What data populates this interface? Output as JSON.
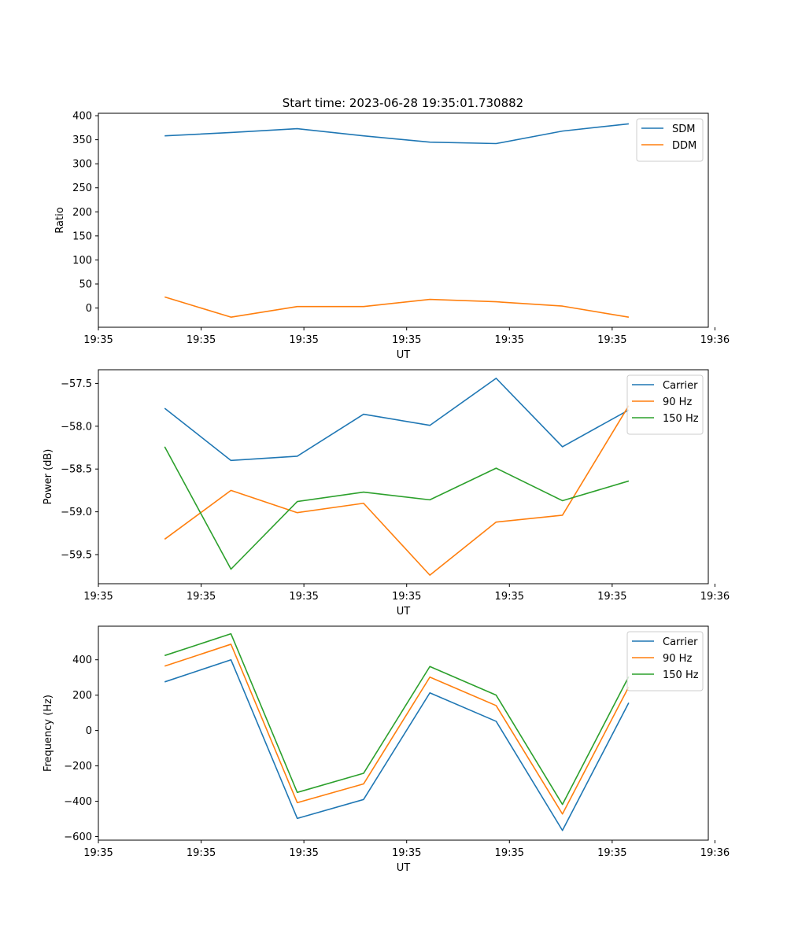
{
  "figure": {
    "title": "Start time: 2023-06-28 19:35:01.730882"
  },
  "chart_data": [
    {
      "type": "line",
      "title": "Start time: 2023-06-28 19:35:01.730882",
      "xlabel": "UT",
      "ylabel": "Ratio",
      "x_tick_labels": [
        "19:35",
        "19:35",
        "19:35",
        "19:35",
        "19:35",
        "19:35",
        "19:36"
      ],
      "y_ticks": [
        0,
        50,
        100,
        150,
        200,
        250,
        300,
        350,
        400
      ],
      "ylim": [
        -40,
        405
      ],
      "x_index": [
        1,
        2,
        3,
        4,
        5,
        6,
        7,
        8
      ],
      "xlim": [
        0,
        9.2
      ],
      "x_tick_positions": [
        0,
        1.55,
        3.1,
        4.65,
        6.2,
        7.75,
        9.3
      ],
      "legend": "top-right",
      "grid": false,
      "series": [
        {
          "name": "SDM",
          "color": "#1f77b4",
          "values": [
            358,
            365,
            373,
            358,
            345,
            342,
            368,
            383
          ]
        },
        {
          "name": "DDM",
          "color": "#ff7f0e",
          "values": [
            23,
            -19,
            3,
            3,
            18,
            13,
            4,
            -19
          ]
        }
      ]
    },
    {
      "type": "line",
      "title": "",
      "xlabel": "UT",
      "ylabel": "Power (dB)",
      "x_tick_labels": [
        "19:35",
        "19:35",
        "19:35",
        "19:35",
        "19:35",
        "19:35",
        "19:36"
      ],
      "y_ticks": [
        -59.5,
        -59.0,
        -58.5,
        -58.0,
        -57.5
      ],
      "y_tick_labels": [
        "−59.5",
        "−59.0",
        "−58.5",
        "−58.0",
        "−57.5"
      ],
      "ylim": [
        -59.84,
        -57.34
      ],
      "x_index": [
        1,
        2,
        3,
        4,
        5,
        6,
        7,
        8
      ],
      "xlim": [
        0,
        9.2
      ],
      "x_tick_positions": [
        0,
        1.55,
        3.1,
        4.65,
        6.2,
        7.75,
        9.3
      ],
      "legend": "top-right",
      "grid": false,
      "series": [
        {
          "name": "Carrier",
          "color": "#1f77b4",
          "values": [
            -57.79,
            -58.4,
            -58.35,
            -57.86,
            -57.99,
            -57.44,
            -58.24,
            -57.81
          ]
        },
        {
          "name": "90 Hz",
          "color": "#ff7f0e",
          "values": [
            -59.32,
            -58.75,
            -59.01,
            -58.9,
            -59.74,
            -59.12,
            -59.04,
            -57.76
          ]
        },
        {
          "name": "150 Hz",
          "color": "#2ca02c",
          "values": [
            -58.24,
            -59.67,
            -58.88,
            -58.77,
            -58.86,
            -58.49,
            -58.87,
            -58.64
          ]
        }
      ]
    },
    {
      "type": "line",
      "title": "",
      "xlabel": "UT",
      "ylabel": "Frequency (Hz)",
      "x_tick_labels": [
        "19:35",
        "19:35",
        "19:35",
        "19:35",
        "19:35",
        "19:35",
        "19:36"
      ],
      "y_ticks": [
        -600,
        -400,
        -200,
        0,
        200,
        400
      ],
      "y_tick_labels": [
        "−600",
        "−400",
        "−200",
        "0",
        "200",
        "400"
      ],
      "ylim": [
        -620,
        590
      ],
      "x_index": [
        1,
        2,
        3,
        4,
        5,
        6,
        7,
        8
      ],
      "xlim": [
        0,
        9.2
      ],
      "x_tick_positions": [
        0,
        1.55,
        3.1,
        4.65,
        6.2,
        7.75,
        9.3
      ],
      "legend": "top-right",
      "grid": false,
      "series": [
        {
          "name": "Carrier",
          "color": "#1f77b4",
          "values": [
            275,
            400,
            -497,
            -390,
            213,
            52,
            -565,
            157
          ]
        },
        {
          "name": "90 Hz",
          "color": "#ff7f0e",
          "values": [
            364,
            488,
            -408,
            -302,
            302,
            141,
            -472,
            247
          ]
        },
        {
          "name": "150 Hz",
          "color": "#2ca02c",
          "values": [
            424,
            547,
            -350,
            -242,
            362,
            200,
            -418,
            305
          ]
        }
      ]
    }
  ]
}
